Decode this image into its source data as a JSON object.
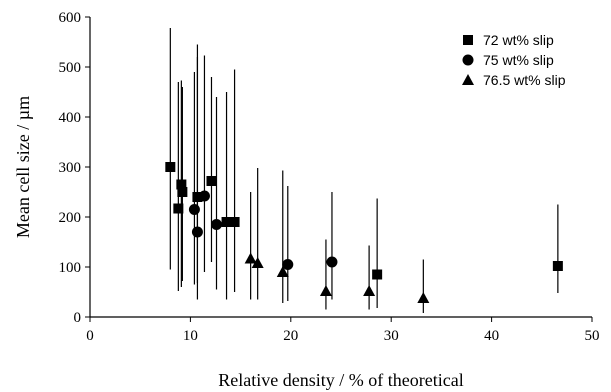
{
  "chart_data": {
    "type": "scatter",
    "xlabel": "Relative density / % of theoretical",
    "ylabel": "Mean cell size / µm",
    "xlim": [
      0,
      50
    ],
    "ylim": [
      0,
      600
    ],
    "x_ticks": [
      "0",
      "10",
      "20",
      "30",
      "40",
      "50"
    ],
    "y_ticks": [
      "0",
      "100",
      "200",
      "300",
      "400",
      "500",
      "600"
    ],
    "grid": false,
    "legend_position": "top-right",
    "series": [
      {
        "name": "72 wt% slip",
        "marker": "square",
        "points": [
          {
            "x": 8.0,
            "y": 300,
            "ylow": 95,
            "yhigh": 578
          },
          {
            "x": 8.8,
            "y": 217,
            "ylow": 52,
            "yhigh": 470
          },
          {
            "x": 9.1,
            "y": 265,
            "ylow": 60,
            "yhigh": 473
          },
          {
            "x": 9.2,
            "y": 250,
            "ylow": 72,
            "yhigh": 460
          },
          {
            "x": 10.7,
            "y": 240,
            "ylow": 68,
            "yhigh": 545
          },
          {
            "x": 12.1,
            "y": 272,
            "ylow": 110,
            "yhigh": 480
          },
          {
            "x": 13.6,
            "y": 190,
            "ylow": 35,
            "yhigh": 450
          },
          {
            "x": 14.4,
            "y": 190,
            "ylow": 50,
            "yhigh": 495
          },
          {
            "x": 28.6,
            "y": 85,
            "ylow": 18,
            "yhigh": 237
          },
          {
            "x": 46.6,
            "y": 102,
            "ylow": 48,
            "yhigh": 225
          }
        ]
      },
      {
        "name": "75 wt% slip",
        "marker": "circle",
        "points": [
          {
            "x": 10.4,
            "y": 215,
            "ylow": 65,
            "yhigh": 490
          },
          {
            "x": 10.7,
            "y": 170,
            "ylow": 35,
            "yhigh": 520
          },
          {
            "x": 11.4,
            "y": 242,
            "ylow": 90,
            "yhigh": 523
          },
          {
            "x": 12.6,
            "y": 185,
            "ylow": 55,
            "yhigh": 440
          },
          {
            "x": 19.7,
            "y": 105,
            "ylow": 32,
            "yhigh": 262
          },
          {
            "x": 24.1,
            "y": 110,
            "ylow": 35,
            "yhigh": 250
          }
        ]
      },
      {
        "name": "76.5 wt% slip",
        "marker": "triangle",
        "points": [
          {
            "x": 16.0,
            "y": 117,
            "ylow": 35,
            "yhigh": 250
          },
          {
            "x": 16.7,
            "y": 108,
            "ylow": 35,
            "yhigh": 298
          },
          {
            "x": 19.2,
            "y": 90,
            "ylow": 28,
            "yhigh": 293
          },
          {
            "x": 23.5,
            "y": 52,
            "ylow": 15,
            "yhigh": 155
          },
          {
            "x": 27.8,
            "y": 52,
            "ylow": 15,
            "yhigh": 143
          },
          {
            "x": 33.2,
            "y": 38,
            "ylow": 8,
            "yhigh": 115
          }
        ]
      }
    ]
  }
}
